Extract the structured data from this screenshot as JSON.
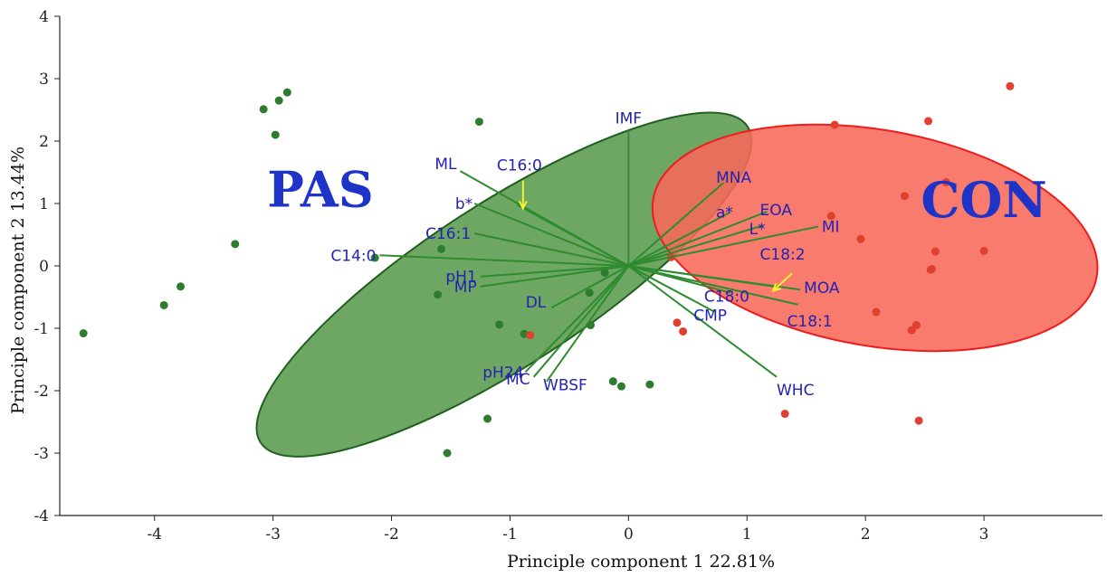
{
  "chart_data": {
    "type": "scatter",
    "xlabel": "Principle component 1 22.81%",
    "ylabel": "Principle component 2 13.44%",
    "xlim": [
      -4.8,
      4.0
    ],
    "ylim": [
      -4,
      4
    ],
    "xticks": [
      -4,
      -3,
      -2,
      -1,
      0,
      1,
      2,
      3
    ],
    "yticks": [
      -4,
      -3,
      -2,
      -1,
      0,
      1,
      2,
      3,
      4
    ],
    "grid": false,
    "groups": [
      {
        "name": "PAS",
        "color": "#2e7d2e",
        "fill": "#5a9b4f",
        "ellipse": {
          "center": [
            -1.05,
            -0.3
          ],
          "rx": 2.45,
          "ry": 1.3,
          "angle_deg": 33
        },
        "points": [
          [
            -4.6,
            -1.08
          ],
          [
            -3.92,
            -0.63
          ],
          [
            -3.78,
            -0.33
          ],
          [
            -3.32,
            0.35
          ],
          [
            -3.08,
            2.51
          ],
          [
            -2.95,
            2.65
          ],
          [
            -2.88,
            2.78
          ],
          [
            -2.98,
            2.1
          ],
          [
            -2.14,
            0.13
          ],
          [
            -1.61,
            -0.46
          ],
          [
            -1.58,
            0.27
          ],
          [
            -1.53,
            -3.0
          ],
          [
            -1.26,
            2.31
          ],
          [
            -1.19,
            -2.45
          ],
          [
            -1.09,
            -0.94
          ],
          [
            -0.88,
            -1.09
          ],
          [
            -0.33,
            -0.43
          ],
          [
            -0.32,
            -0.95
          ],
          [
            -0.2,
            -0.11
          ],
          [
            -0.13,
            -1.85
          ],
          [
            -0.06,
            -1.93
          ],
          [
            0.18,
            -1.9
          ]
        ]
      },
      {
        "name": "CON",
        "color": "#e04030",
        "fill": "#f7695a",
        "ellipse": {
          "center": [
            2.08,
            0.45
          ],
          "rx": 1.9,
          "ry": 1.73,
          "angle_deg": -10
        },
        "points": [
          [
            -0.83,
            -1.11
          ],
          [
            0.36,
            0.14
          ],
          [
            0.41,
            -0.91
          ],
          [
            0.46,
            -1.05
          ],
          [
            1.32,
            -2.37
          ],
          [
            1.71,
            0.8
          ],
          [
            1.74,
            2.26
          ],
          [
            1.96,
            0.43
          ],
          [
            2.09,
            -0.74
          ],
          [
            2.33,
            1.12
          ],
          [
            2.39,
            -1.03
          ],
          [
            2.43,
            -0.95
          ],
          [
            2.45,
            -2.48
          ],
          [
            2.53,
            2.32
          ],
          [
            2.55,
            -0.06
          ],
          [
            2.56,
            -0.05
          ],
          [
            2.59,
            0.23
          ],
          [
            2.68,
            1.34
          ],
          [
            3.0,
            0.24
          ],
          [
            3.22,
            2.88
          ]
        ]
      }
    ],
    "vectors": [
      {
        "label": "IMF",
        "color": "#3a8a3a",
        "end": [
          0.0,
          2.17
        ]
      },
      {
        "label": "ML",
        "color": "#2e8b2e",
        "end": [
          -1.42,
          1.52
        ]
      },
      {
        "label": "C16:0",
        "color": "#2e8b2e",
        "end": [
          -0.94,
          0.98
        ]
      },
      {
        "label": "b*",
        "color": "#2e8b2e",
        "end": [
          -1.3,
          1.0
        ]
      },
      {
        "label": "C16:1",
        "color": "#2e8b2e",
        "end": [
          -1.3,
          0.52
        ]
      },
      {
        "label": "C14:0",
        "color": "#2e8b2e",
        "end": [
          -2.1,
          0.17
        ]
      },
      {
        "label": "pH1",
        "color": "#2e8b2e",
        "end": [
          -1.25,
          -0.17
        ]
      },
      {
        "label": "MP",
        "color": "#2e8b2e",
        "end": [
          -1.25,
          -0.33
        ]
      },
      {
        "label": "DL",
        "color": "#2e8b2e",
        "end": [
          -0.65,
          -0.67
        ]
      },
      {
        "label": "pH24",
        "color": "#2e8b2e",
        "end": [
          -0.87,
          -1.7
        ]
      },
      {
        "label": "MC",
        "color": "#2e8b2e",
        "end": [
          -0.8,
          -1.78
        ]
      },
      {
        "label": "WBSF",
        "color": "#2e8b2e",
        "end": [
          -0.69,
          -1.85
        ]
      },
      {
        "label": "MNA",
        "color": "#2e8b2e",
        "end": [
          0.8,
          1.33
        ]
      },
      {
        "label": "a*",
        "color": "#2e8b2e",
        "end": [
          0.86,
          0.86
        ]
      },
      {
        "label": "EOA",
        "color": "#2e8b2e",
        "end": [
          1.17,
          0.87
        ]
      },
      {
        "label": "L*",
        "color": "#2e8b2e",
        "end": [
          1.14,
          0.65
        ]
      },
      {
        "label": "MI",
        "color": "#2e8b2e",
        "end": [
          1.6,
          0.63
        ]
      },
      {
        "label": "C18:2",
        "color": "#2e8b2e",
        "end": [
          1.23,
          -0.33
        ]
      },
      {
        "label": "MOA",
        "color": "#2e8b2e",
        "end": [
          1.45,
          -0.38
        ]
      },
      {
        "label": "C18:1",
        "color": "#2e8b2e",
        "end": [
          1.43,
          -0.62
        ]
      },
      {
        "label": "C18:0",
        "color": "#2e8b2e",
        "end": [
          0.86,
          -0.43
        ]
      },
      {
        "label": "CMP",
        "color": "#2e8b2e",
        "end": [
          0.72,
          -0.73
        ]
      },
      {
        "label": "WHC",
        "color": "#2e8b2e",
        "end": [
          1.25,
          -1.78
        ]
      }
    ],
    "arrows": [
      {
        "label": "C16:0",
        "color": "#f2f230",
        "from": [
          -0.89,
          1.37
        ],
        "to": [
          -0.89,
          0.92
        ]
      },
      {
        "label": "C18:2",
        "color": "#f2f230",
        "from": [
          1.38,
          -0.12
        ],
        "to": [
          1.22,
          -0.4
        ]
      }
    ],
    "group_labels": [
      {
        "text": "PAS",
        "color": "#1e34c8",
        "at": [
          -2.6,
          0.95
        ]
      },
      {
        "text": "CON",
        "color": "#1a2aa0",
        "at": [
          3.0,
          0.78
        ]
      }
    ]
  }
}
